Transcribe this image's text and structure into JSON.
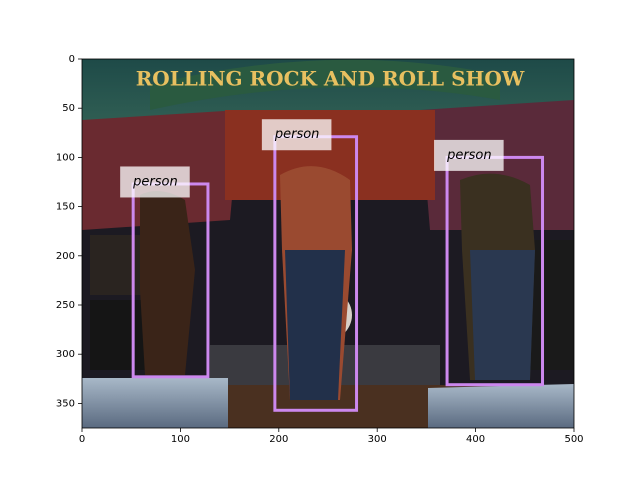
{
  "chart_data": {
    "type": "image-boxes",
    "xlim": [
      0,
      500
    ],
    "ylim": [
      375,
      0
    ],
    "xticks": [
      0,
      100,
      200,
      300,
      400,
      500
    ],
    "yticks": [
      0,
      50,
      100,
      150,
      200,
      250,
      300,
      350
    ],
    "color": "#cc88ee",
    "boxes": [
      {
        "label": "person",
        "x": [
          52,
          128
        ],
        "y": [
          127,
          323
        ]
      },
      {
        "label": "person",
        "x": [
          196,
          279
        ],
        "y": [
          79,
          357
        ]
      },
      {
        "label": "person",
        "x": [
          371,
          468
        ],
        "y": [
          100,
          331
        ]
      }
    ]
  }
}
